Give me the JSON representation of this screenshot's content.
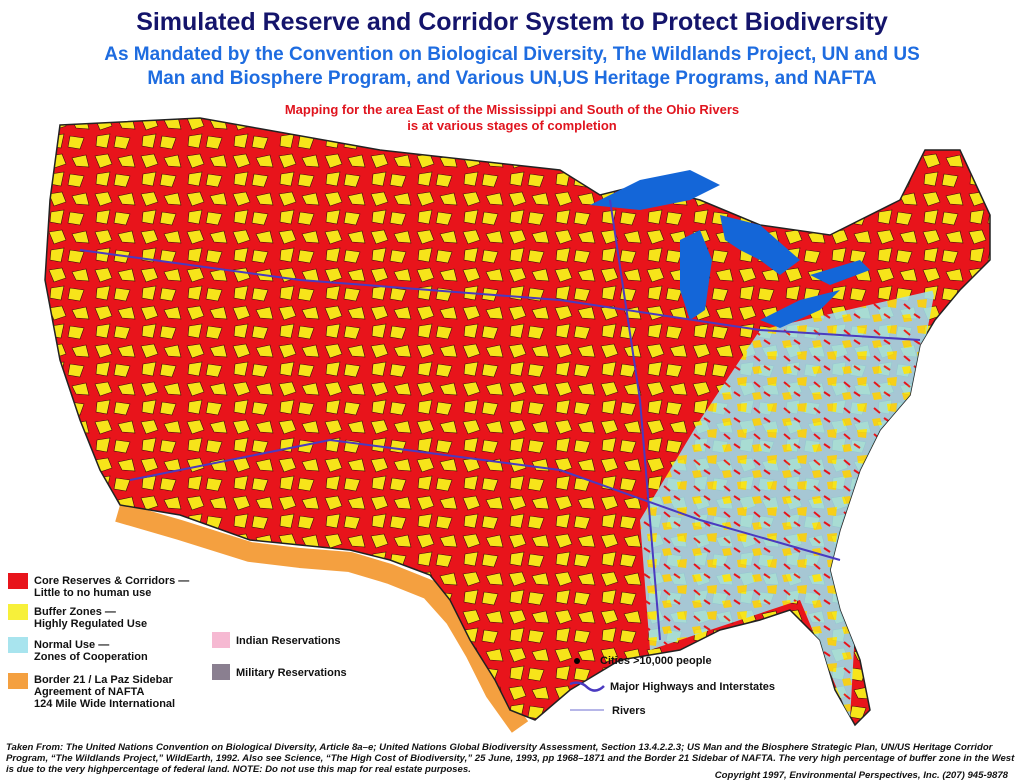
{
  "header": {
    "title": "Simulated Reserve and Corridor System to Protect Biodiversity",
    "subtitle_lines": [
      "As Mandated by the Convention on Biological Diversity, The Wildlands Project, UN and US",
      "Man and Biosphere Program, and Various UN,US Heritage Programs, and NAFTA"
    ],
    "note_lines": [
      "Mapping for the area East of the Mississippi and South of the Ohio Rivers",
      "is at various stages of completion"
    ]
  },
  "legend": {
    "zones": [
      {
        "lines": [
          "Core Reserves & Corridors —",
          "Little to no human use"
        ]
      },
      {
        "lines": [
          "Buffer Zones —",
          "Highly Regulated Use"
        ]
      },
      {
        "lines": [
          "Normal Use —",
          "Zones of Cooperation"
        ]
      },
      {
        "lines": [
          "Border 21 / La Paz Sidebar",
          "Agreement of NAFTA",
          "124 Mile Wide International"
        ]
      }
    ],
    "reservations": [
      "Indian Reservations",
      "Military Reservations"
    ],
    "symbols": [
      "Cities >10,000 people",
      "Major Highways and Interstates",
      "Rivers"
    ]
  },
  "footer": {
    "source": "Taken From: The United Nations Convention on Biological Diversity, Article 8a–e; United Nations Global Biodiversity Assessment, Section 13.4.2.2.3; US Man and the Biosphere Strategic Plan, UN/US Heritage Corridor Program, “The Wildlands Project,” WildEarth, 1992. Also see Science, “The High Cost of Biodiversity,” 25 June, 1993, pp 1968–1871 and the Border 21 Sidebar of NAFTA. The very high percentage of buffer zone in the West is due to the very highpercentage of federal land. NOTE: Do not use this map for real estate purposes.",
    "copyright": "Copyright 1997, Environmental Perspectives, Inc. (207) 945-9878"
  }
}
